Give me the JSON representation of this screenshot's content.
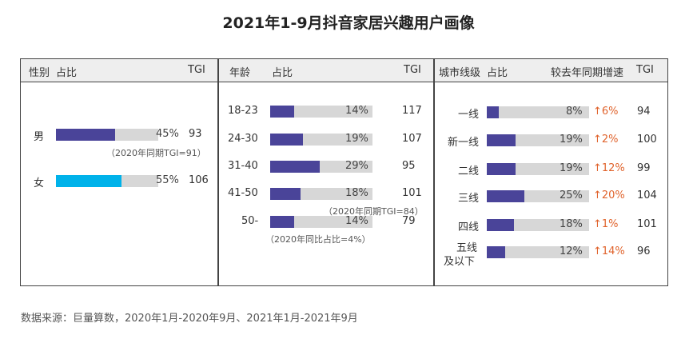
{
  "title": "2021年1-9月抖音家居兴趣用户画像",
  "source": "数据来源：巨量算数，2020年1月-2020年9月、2021年1月-2021年9月",
  "colors": {
    "bar_main": "#4a4499",
    "bar_female": "#00b2ea",
    "track": "#d7d7d7",
    "growth": "#e0632c"
  },
  "panels": {
    "gender": {
      "headers": {
        "category": "性别",
        "share": "占比",
        "tgi": "TGI"
      },
      "rows": [
        {
          "label": "男",
          "pct_text": "45%",
          "tgi": "93",
          "note": "（2020年同期TGI=91）"
        },
        {
          "label": "女",
          "pct_text": "55%",
          "tgi": "106"
        }
      ]
    },
    "age": {
      "headers": {
        "category": "年龄",
        "share": "占比",
        "tgi": "TGI"
      },
      "rows": [
        {
          "label": "18-23",
          "pct_text": "14%",
          "tgi": "117"
        },
        {
          "label": "24-30",
          "pct_text": "19%",
          "tgi": "107"
        },
        {
          "label": "31-40",
          "pct_text": "29%",
          "tgi": "95"
        },
        {
          "label": "41-50",
          "pct_text": "18%",
          "tgi": "101",
          "note": "（2020年同期TGI=84）"
        },
        {
          "label": "50-",
          "pct_text": "14%",
          "tgi": "79",
          "note": "（2020年同比占比=4%）"
        }
      ]
    },
    "city": {
      "headers": {
        "category": "城市线级",
        "share": "占比",
        "growth": "较去年同期增速",
        "tgi": "TGI"
      },
      "rows": [
        {
          "label": "一线",
          "pct_text": "8%",
          "growth": "↑6%",
          "tgi": "94"
        },
        {
          "label": "新一线",
          "pct_text": "19%",
          "growth": "↑2%",
          "tgi": "100"
        },
        {
          "label": "二线",
          "pct_text": "19%",
          "growth": "↑12%",
          "tgi": "99"
        },
        {
          "label": "三线",
          "pct_text": "25%",
          "growth": "↑20%",
          "tgi": "104"
        },
        {
          "label": "四线",
          "pct_text": "18%",
          "growth": "↑1%",
          "tgi": "101"
        },
        {
          "label": "五线",
          "label2": "及以下",
          "pct_text": "12%",
          "growth": "↑14%",
          "tgi": "96"
        }
      ]
    }
  },
  "chart_data": [
    {
      "type": "bar",
      "categories": [
        "男",
        "女"
      ],
      "series": [
        {
          "values": [
            45,
            55
          ]
        }
      ],
      "tgi": [
        93,
        106
      ],
      "xlim": [
        0,
        100
      ]
    },
    {
      "type": "bar",
      "categories": [
        "18-23",
        "24-30",
        "31-40",
        "41-50",
        "50-"
      ],
      "series": [
        {
          "values": [
            14,
            19,
            29,
            18,
            14
          ]
        }
      ],
      "tgi": [
        117,
        107,
        95,
        101,
        79
      ],
      "xlim": [
        0,
        100
      ]
    },
    {
      "type": "bar",
      "categories": [
        "一线",
        "新一线",
        "二线",
        "三线",
        "四线",
        "五线及以下"
      ],
      "series": [
        {
          "values": [
            8,
            19,
            19,
            25,
            18,
            12
          ]
        }
      ],
      "growth_pct": [
        6,
        2,
        12,
        20,
        1,
        14
      ],
      "tgi": [
        94,
        100,
        99,
        104,
        101,
        96
      ],
      "xlim": [
        0,
        100
      ]
    }
  ]
}
